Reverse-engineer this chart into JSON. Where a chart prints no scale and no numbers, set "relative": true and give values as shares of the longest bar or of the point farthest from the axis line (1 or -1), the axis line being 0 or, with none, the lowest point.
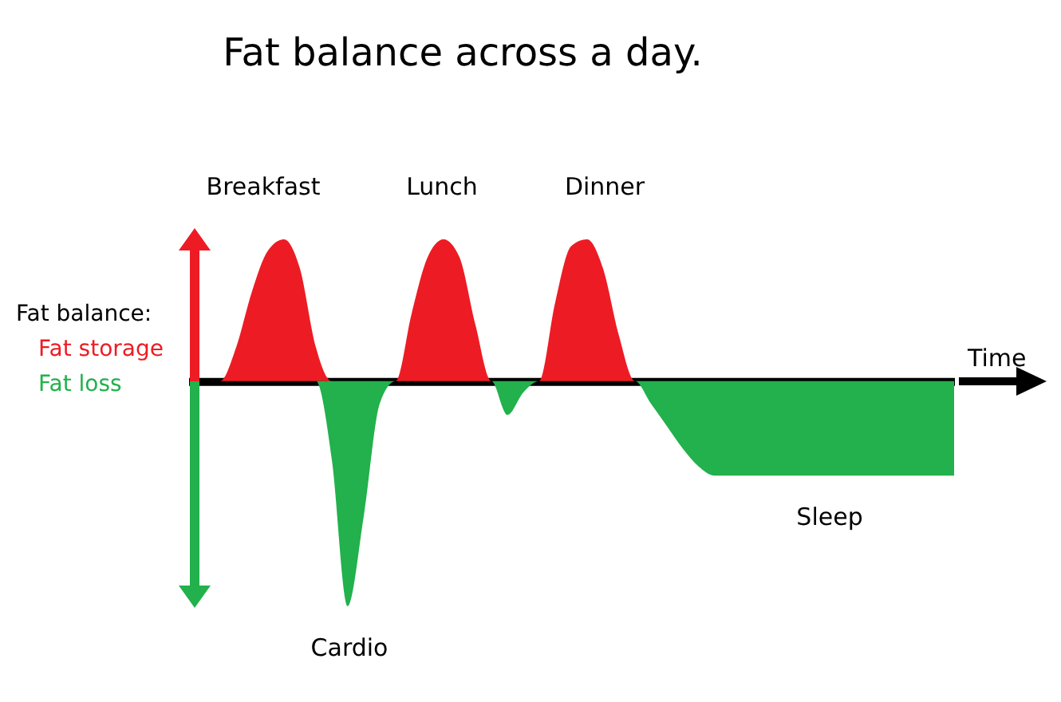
{
  "chart_data": {
    "type": "area",
    "title": "Fat balance across a day.",
    "xlabel": "Time",
    "legend_title": "Fat balance:",
    "legend": "left",
    "relative": true,
    "categories": [
      null,
      null,
      null,
      null,
      null,
      null,
      null,
      null,
      null,
      null,
      null,
      null,
      null,
      null,
      null,
      null,
      null,
      null,
      null,
      null,
      null,
      null,
      null,
      null,
      null,
      null,
      null,
      null,
      null,
      null,
      null,
      null,
      null,
      null,
      null,
      null,
      null,
      null,
      null,
      null,
      null,
      null,
      null,
      null,
      null,
      null,
      null,
      null,
      null
    ],
    "series": [
      {
        "name": "Fat storage",
        "color": "#ed1c24",
        "values": [
          0,
          0,
          0,
          0.15,
          0.4,
          0.58,
          0.63,
          0.5,
          0.15,
          0,
          0,
          0,
          0,
          0,
          0.3,
          0.55,
          0.63,
          0.55,
          0.25,
          0,
          0,
          0,
          0,
          0.35,
          0.6,
          0.63,
          0.5,
          0.2,
          0,
          0,
          0,
          0,
          0,
          0,
          0,
          0,
          0,
          0,
          0,
          0,
          0,
          0,
          0,
          0,
          0,
          0,
          0,
          0,
          0
        ]
      },
      {
        "name": "Fat loss",
        "color": "#22b14c",
        "values": [
          0,
          0,
          0,
          0,
          0,
          0,
          0,
          0,
          0,
          -0.35,
          -1,
          -0.6,
          -0.1,
          0,
          0,
          0,
          0,
          0,
          0,
          0,
          -0.15,
          -0.05,
          0,
          0,
          0,
          0,
          0,
          0,
          0,
          -0.1,
          -0.2,
          -0.3,
          -0.38,
          -0.42,
          -0.42,
          -0.42,
          -0.42,
          -0.42,
          -0.42,
          -0.42,
          -0.42,
          -0.42,
          -0.42,
          -0.42,
          -0.42,
          -0.42,
          -0.42,
          -0.42,
          -0.42
        ]
      }
    ],
    "annotations": [
      "Breakfast",
      "Lunch",
      "Dinner",
      "Cardio",
      "Sleep"
    ]
  }
}
